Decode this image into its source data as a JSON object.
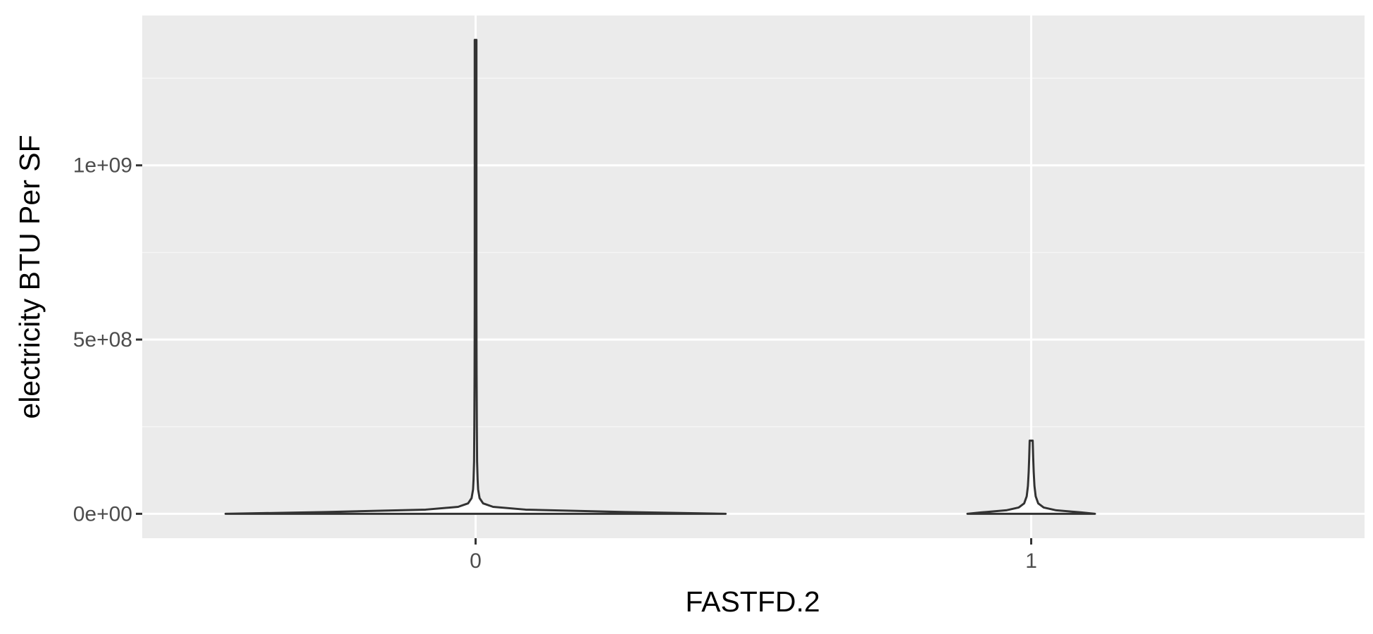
{
  "chart_data": {
    "type": "violin",
    "xlabel": "FASTFD.2",
    "ylabel": "electricity BTU Per SF",
    "categories": [
      "0",
      "1"
    ],
    "y_ticks": [
      {
        "value": 0,
        "label": "0e+00"
      },
      {
        "value": 500000000,
        "label": "5e+08"
      },
      {
        "value": 1000000000,
        "label": "1e+09"
      }
    ],
    "ylim": [
      -70000000,
      1430000000
    ],
    "grid": true,
    "violins": [
      {
        "category": "0",
        "y_min": 0,
        "y_max": 1360000000,
        "profile": [
          {
            "y": 0,
            "w": 1.0
          },
          {
            "y": 5000000,
            "w": 0.6
          },
          {
            "y": 12000000,
            "w": 0.2
          },
          {
            "y": 20000000,
            "w": 0.07
          },
          {
            "y": 30000000,
            "w": 0.03
          },
          {
            "y": 45000000,
            "w": 0.016
          },
          {
            "y": 70000000,
            "w": 0.01
          },
          {
            "y": 100000000,
            "w": 0.008
          },
          {
            "y": 150000000,
            "w": 0.006
          },
          {
            "y": 250000000,
            "w": 0.005
          },
          {
            "y": 400000000,
            "w": 0.004
          },
          {
            "y": 600000000,
            "w": 0.003
          },
          {
            "y": 900000000,
            "w": 0.002
          },
          {
            "y": 1360000000,
            "w": 0.0015
          }
        ]
      },
      {
        "category": "1",
        "y_min": 0,
        "y_max": 210000000,
        "profile": [
          {
            "y": 0,
            "w": 0.255
          },
          {
            "y": 4000000,
            "w": 0.2
          },
          {
            "y": 10000000,
            "w": 0.1
          },
          {
            "y": 18000000,
            "w": 0.05
          },
          {
            "y": 30000000,
            "w": 0.028
          },
          {
            "y": 50000000,
            "w": 0.018
          },
          {
            "y": 80000000,
            "w": 0.013
          },
          {
            "y": 120000000,
            "w": 0.01
          },
          {
            "y": 160000000,
            "w": 0.008
          },
          {
            "y": 210000000,
            "w": 0.006
          }
        ]
      }
    ],
    "colors": {
      "panel_background": "#ebebeb",
      "grid_major": "#ffffff",
      "grid_minor": "#f5f5f5",
      "violin_outline": "#333333",
      "violin_fill": "#ffffff",
      "tick_label": "#4d4d4d",
      "axis_title": "#000000"
    }
  }
}
